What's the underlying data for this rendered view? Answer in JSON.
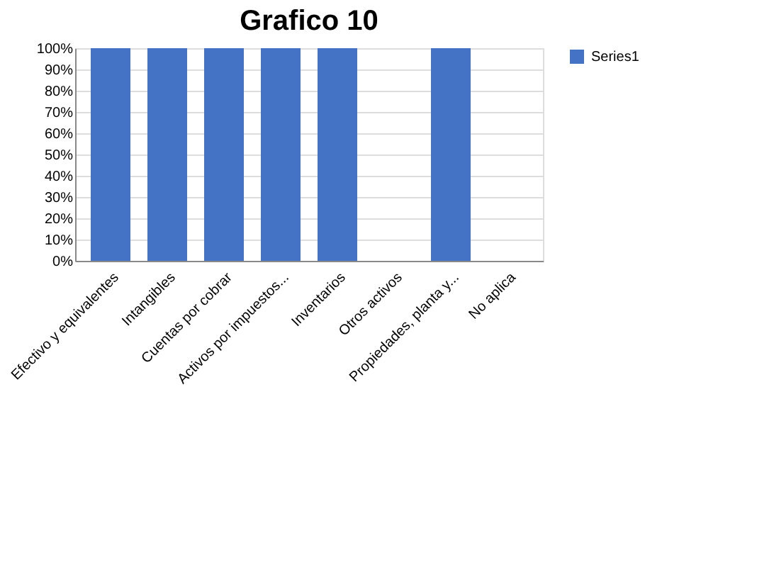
{
  "chart_data": {
    "type": "bar",
    "title": "Grafico 10",
    "categories": [
      "Efectivo y equivalentes",
      "Intangibles",
      "Cuentas por cobrar",
      "Activos por impuestos...",
      "Inventarios",
      "Otros activos",
      "Propiedades, planta y...",
      "No aplica"
    ],
    "series": [
      {
        "name": "Series1",
        "color": "#4472c4",
        "values": [
          100,
          100,
          100,
          100,
          100,
          0,
          100,
          0
        ]
      }
    ],
    "ylim": [
      0,
      100
    ],
    "yticks": [
      {
        "value": 0,
        "label": "0%"
      },
      {
        "value": 10,
        "label": "10%"
      },
      {
        "value": 20,
        "label": "20%"
      },
      {
        "value": 30,
        "label": "30%"
      },
      {
        "value": 40,
        "label": "40%"
      },
      {
        "value": 50,
        "label": "50%"
      },
      {
        "value": 60,
        "label": "60%"
      },
      {
        "value": 70,
        "label": "70%"
      },
      {
        "value": 80,
        "label": "80%"
      },
      {
        "value": 90,
        "label": "90%"
      },
      {
        "value": 100,
        "label": "100%"
      }
    ],
    "grid": "y",
    "legend": "right"
  }
}
